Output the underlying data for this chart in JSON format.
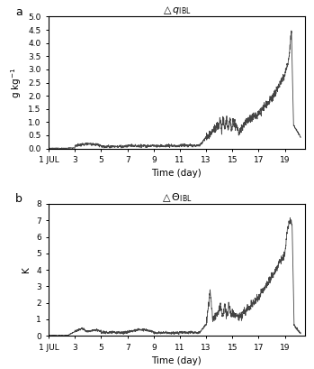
{
  "title_a": "$\\triangle q_{\\mathrm{IBL}}$",
  "title_b": "$\\triangle \\Theta_{\\mathrm{IBL}}$",
  "xlabel": "Time (day)",
  "ylabel_a": "g kg$^{-1}$",
  "ylabel_b": "K",
  "xlim": [
    1,
    20.5
  ],
  "ylim_a": [
    0,
    5
  ],
  "ylim_b": [
    0,
    8
  ],
  "xticks": [
    1,
    3,
    5,
    7,
    9,
    11,
    13,
    15,
    17,
    19
  ],
  "xticklabels": [
    "1 JUL",
    "3",
    "5",
    "7",
    "9",
    "11",
    "13",
    "15",
    "17",
    "19"
  ],
  "yticks_a": [
    0,
    0.5,
    1,
    1.5,
    2,
    2.5,
    3,
    3.5,
    4,
    4.5,
    5
  ],
  "yticks_b": [
    0,
    1,
    2,
    3,
    4,
    5,
    6,
    7,
    8
  ],
  "label_a": "a",
  "label_b": "b",
  "line_color": "#444444",
  "line_width": 0.6,
  "background_color": "#ffffff"
}
